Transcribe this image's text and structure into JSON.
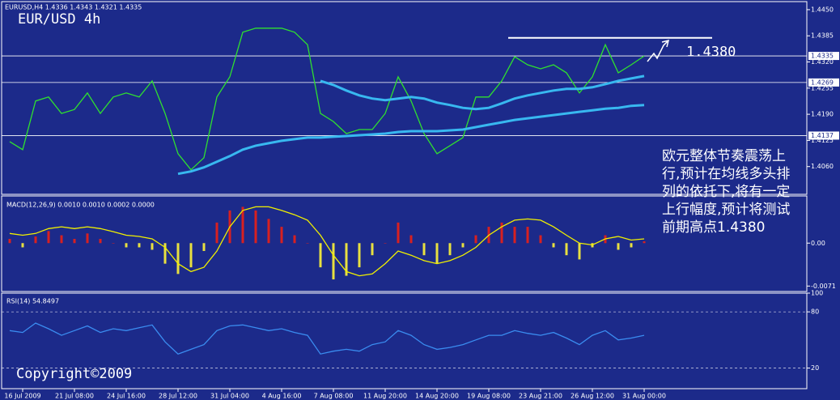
{
  "chart_data": [
    {
      "type": "line",
      "header": "EURUSD,H4  1.4336 1.4343 1.4321 1.4335",
      "title": "EUR/USD 4h",
      "categories": [
        null,
        "16 Jul 2009",
        null,
        null,
        null,
        "21 Jul 08:00",
        null,
        null,
        null,
        "24 Jul 16:00",
        null,
        null,
        null,
        "28 Jul 12:00",
        null,
        null,
        null,
        "31 Jul 04:00",
        null,
        null,
        null,
        "4 Aug 16:00",
        null,
        null,
        null,
        "7 Aug 08:00",
        null,
        null,
        null,
        "11 Aug 20:00",
        null,
        null,
        null,
        "14 Aug 20:00",
        null,
        null,
        null,
        "19 Aug 08:00",
        null,
        null,
        null,
        "23 Aug 21:00",
        null,
        null,
        null,
        "26 Aug 12:00",
        null,
        null,
        null,
        "31 Aug 00:00"
      ],
      "series": [
        {
          "color": "#2fe02f",
          "values": [
            1.4122,
            1.4102,
            1.4223,
            1.4233,
            1.4192,
            1.4202,
            1.4243,
            1.4192,
            1.4233,
            1.4243,
            1.4233,
            1.4273,
            1.4192,
            1.4092,
            1.4052,
            1.4082,
            1.4233,
            1.4283,
            1.4394,
            1.4404,
            1.4404,
            1.4404,
            1.4394,
            1.4363,
            1.4192,
            1.4172,
            1.4142,
            1.4152,
            1.4152,
            1.4192,
            1.4283,
            1.4223,
            1.4142,
            1.4092,
            1.4112,
            1.4132,
            1.4233,
            1.4233,
            1.4273,
            1.4333,
            1.4313,
            1.4303,
            1.4313,
            1.4293,
            1.4243,
            1.4283,
            1.4363,
            1.4293,
            1.4313,
            1.4335
          ]
        },
        {
          "color": "#38b8f0",
          "values": [
            null,
            null,
            null,
            null,
            null,
            null,
            null,
            null,
            null,
            null,
            null,
            null,
            null,
            1.4042,
            1.4048,
            1.4058,
            1.4072,
            1.4086,
            1.4102,
            1.4112,
            1.4118,
            1.4124,
            1.4128,
            1.4132,
            1.4132,
            1.4134,
            1.4136,
            1.4138,
            1.414,
            1.4142,
            1.4146,
            1.4148,
            1.4148,
            1.4148,
            1.415,
            1.4152,
            1.4158,
            1.4164,
            1.417,
            1.4176,
            1.418,
            1.4184,
            1.4188,
            1.4192,
            1.4196,
            1.42,
            1.4204,
            1.4206,
            1.4211,
            1.4213
          ]
        },
        {
          "color": "#38b8f0",
          "values": [
            null,
            null,
            null,
            null,
            null,
            null,
            null,
            null,
            null,
            null,
            null,
            null,
            null,
            null,
            null,
            null,
            null,
            null,
            null,
            null,
            null,
            null,
            null,
            null,
            1.4273,
            1.4263,
            1.4249,
            1.4237,
            1.4229,
            1.4225,
            1.4229,
            1.4233,
            1.4229,
            1.4219,
            1.4213,
            1.4206,
            1.4203,
            1.4206,
            1.4217,
            1.4229,
            1.4237,
            1.4243,
            1.4249,
            1.4253,
            1.4253,
            1.4257,
            1.4265,
            1.4273,
            1.4279,
            1.4285
          ]
        }
      ],
      "ylim": [
        1.3991,
        1.447
      ],
      "yticks": [
        {
          "value": 1.445,
          "label": "1.4450"
        },
        1.4385,
        {
          "value": 1.432,
          "label": "1.4320"
        },
        1.4255,
        {
          "value": 1.419,
          "label": "1.4190"
        },
        1.4125,
        {
          "value": 1.406,
          "label": "1.4060"
        }
      ],
      "hlines": [
        1.4335,
        1.4269,
        1.4137
      ],
      "resistance": {
        "value": 1.438,
        "label": "1.4380"
      },
      "annotation": [
        "欧元整体节奏震荡上",
        "行,预计在均线多头排",
        "列的依托下,将有一定",
        "上行幅度,预计将测试",
        "前期高点1.4380"
      ],
      "watermark": "Copyright©2009"
    },
    {
      "type": "macd",
      "header": "MACD(12,26,9) 0.0010 0.0010 0.0002 0.0000",
      "histogram": {
        "color_positive": "#d82020",
        "color_negative": "#e8e040",
        "values": [
          0.0007,
          -0.0007,
          0.0011,
          0.002,
          0.0013,
          0.0007,
          0.0016,
          0.0007,
          0,
          -0.0007,
          -0.0007,
          -0.0011,
          -0.0034,
          -0.0051,
          -0.004,
          -0.0013,
          0.0034,
          0.0054,
          0.006,
          0.0054,
          0.004,
          0.0027,
          0.0013,
          0,
          -0.004,
          -0.006,
          -0.0054,
          -0.004,
          -0.002,
          0,
          0.0034,
          0.0013,
          -0.002,
          -0.0034,
          -0.002,
          -0.0007,
          0.0013,
          0.0027,
          0.0034,
          0.0027,
          0.0027,
          0.0013,
          -0.0007,
          -0.002,
          -0.0027,
          -0.0007,
          0.0013,
          -0.0011,
          -0.0007,
          0.0003
        ]
      },
      "series": [
        {
          "color": "#f0f000",
          "values": [
            0.0016,
            0.0013,
            0.0016,
            0.0024,
            0.0027,
            0.0024,
            0.0027,
            0.0024,
            0.0019,
            0.0013,
            0.0011,
            0.0007,
            -0.0007,
            -0.0034,
            -0.0047,
            -0.004,
            -0.0013,
            0.0027,
            0.0054,
            0.006,
            0.006,
            0.0054,
            0.0047,
            0.0038,
            0.0013,
            -0.002,
            -0.0047,
            -0.0054,
            -0.0051,
            -0.0034,
            -0.0013,
            -0.002,
            -0.0029,
            -0.0034,
            -0.0029,
            -0.002,
            -0.0007,
            0.0013,
            0.0027,
            0.0038,
            0.004,
            0.0038,
            0.0027,
            0.0013,
            0,
            -0.0003,
            0.0007,
            0.0011,
            0.0005,
            0.0007
          ]
        }
      ],
      "ylim": [
        -0.008,
        0.0078
      ],
      "yticks": [
        {
          "value": 0,
          "label": "0.00"
        },
        -0.0071
      ]
    },
    {
      "type": "line",
      "header": "RSI(14) 54.8497",
      "series": [
        {
          "color": "#3a8cf0",
          "values": [
            60,
            58,
            68,
            62,
            55,
            60,
            65,
            58,
            62,
            60,
            63,
            66,
            48,
            35,
            40,
            45,
            60,
            65,
            66,
            63,
            60,
            62,
            58,
            55,
            35,
            38,
            40,
            38,
            45,
            48,
            60,
            55,
            45,
            40,
            42,
            45,
            50,
            55,
            55,
            60,
            57,
            55,
            58,
            52,
            45,
            55,
            60,
            50,
            52,
            55
          ]
        }
      ],
      "ylim": [
        -2,
        100
      ],
      "yticks": [
        20,
        80,
        100
      ],
      "grid": "dashed"
    }
  ]
}
